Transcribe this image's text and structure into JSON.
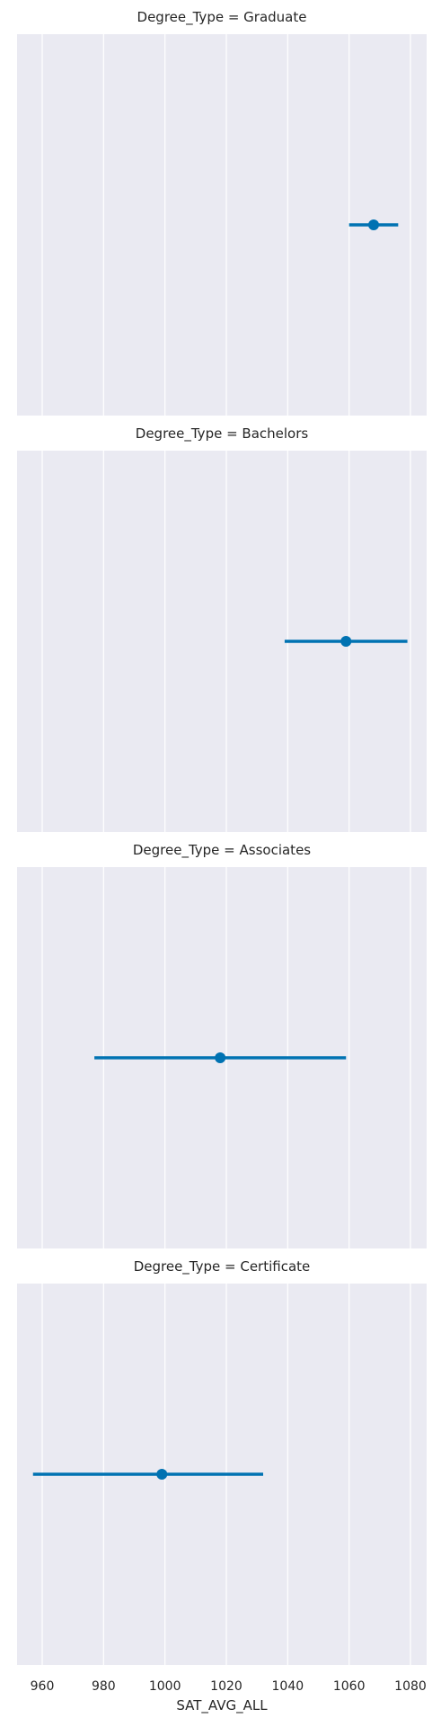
{
  "chart_data": {
    "type": "point",
    "title": "",
    "xlabel": "SAT_AVG_ALL",
    "ylabel": "",
    "xlim": [
      952,
      1085
    ],
    "xticks": [
      960,
      980,
      1000,
      1020,
      1040,
      1060,
      1080
    ],
    "xtick_labels": [
      "960",
      "980",
      "1000",
      "1020",
      "1040",
      "1060",
      "1080"
    ],
    "grid": true,
    "color": "#0072b2",
    "background": "#eaeaf2",
    "panels": [
      {
        "title": "Degree_Type = Graduate",
        "value": 1068,
        "ci": [
          1060,
          1076
        ]
      },
      {
        "title": "Degree_Type = Bachelors",
        "value": 1059,
        "ci": [
          1039,
          1079
        ]
      },
      {
        "title": "Degree_Type = Associates",
        "value": 1018,
        "ci": [
          977,
          1059
        ]
      },
      {
        "title": "Degree_Type = Certificate",
        "value": 999,
        "ci": [
          957,
          1032
        ]
      }
    ]
  }
}
